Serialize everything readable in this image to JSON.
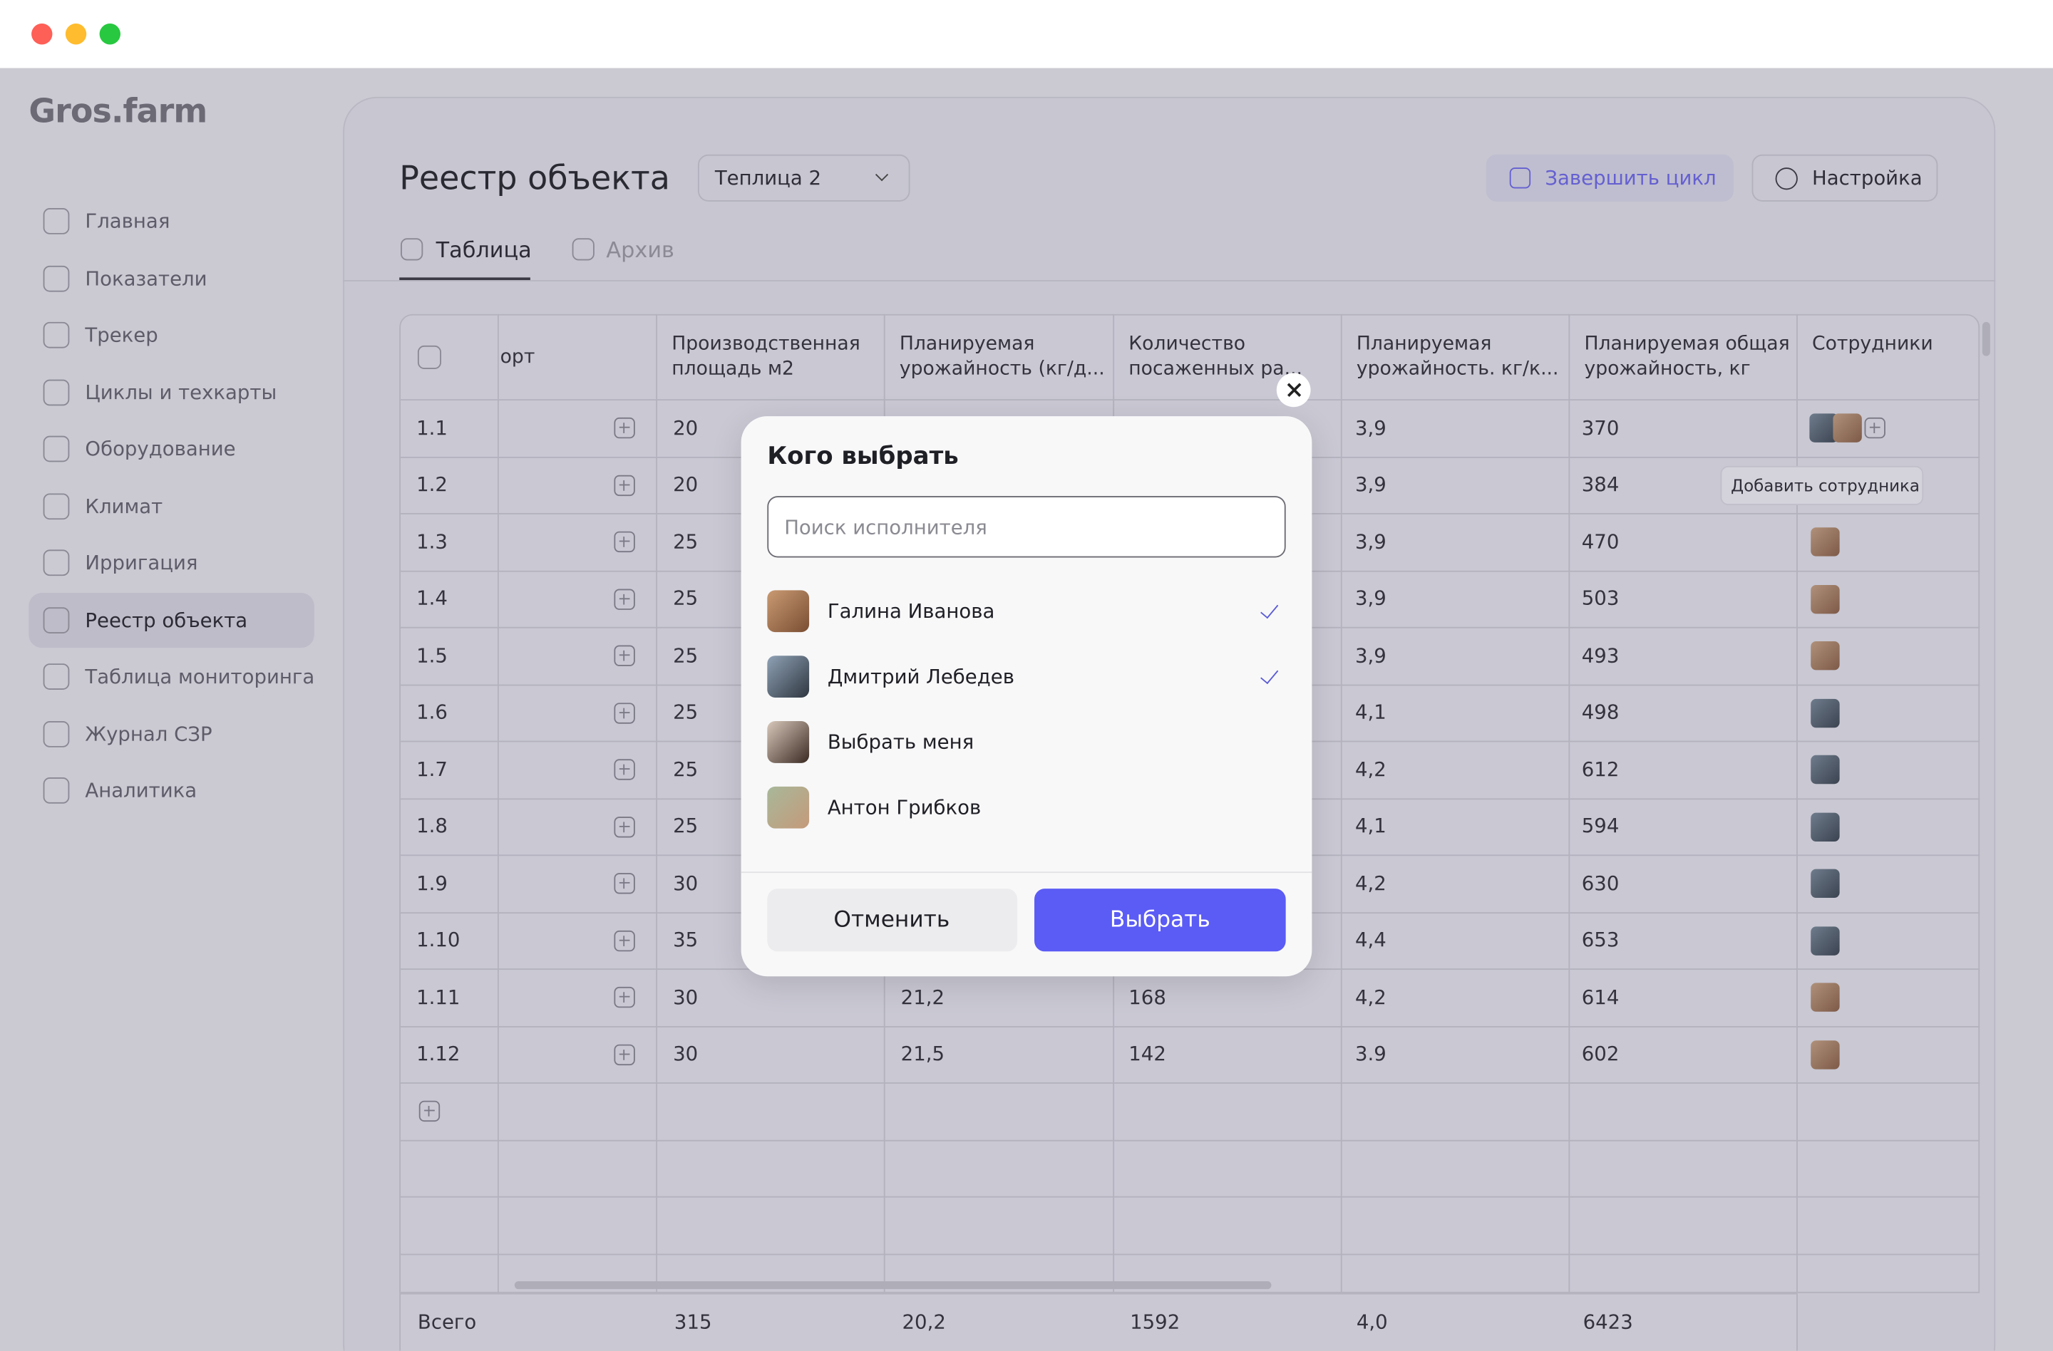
{
  "sidebar": {
    "logo": "Gros.farm",
    "nav": [
      "Главная",
      "Показатели",
      "Трекер",
      "Циклы и техкарты",
      "Оборудование",
      "Климат",
      "Ирригация",
      "Реестр объекта",
      "Таблица мониторинга",
      "Журнал СЗР",
      "Аналитика"
    ]
  },
  "header": {
    "title": "Реестр объекта",
    "object_select": "Теплица 2",
    "buttons": [
      "Завершить цикл",
      "Настройка"
    ]
  },
  "tabs": [
    "Таблица",
    "Архив"
  ],
  "table": {
    "columns": [
      "орт",
      "Производственная площадь м2",
      "Планируемая урожайность (кг/д...",
      "Количество посаженных ра...",
      "Планируемая урожайность. кг/к...",
      "Планируемая общая урожайность, кг",
      "Сотрудники"
    ],
    "rows": [
      [
        "1.1",
        "20",
        null,
        null,
        "3,9",
        "370"
      ],
      [
        "1.2",
        "20",
        null,
        null,
        "3,9",
        "384"
      ],
      [
        "1.3",
        "25",
        null,
        null,
        "3,9",
        "470"
      ],
      [
        "1.4",
        "25",
        null,
        null,
        "3,9",
        "503"
      ],
      [
        "1.5",
        "25",
        null,
        null,
        "3,9",
        "493"
      ],
      [
        "1.6",
        "25",
        null,
        null,
        "4,1",
        "498"
      ],
      [
        "1.7",
        "25",
        null,
        null,
        "4,2",
        "612"
      ],
      [
        "1.8",
        "25",
        null,
        null,
        "4,1",
        "594"
      ],
      [
        "1.9",
        "30",
        null,
        null,
        "4,2",
        "630"
      ],
      [
        "1.10",
        "35",
        null,
        null,
        "4,4",
        "653"
      ],
      [
        "1.11",
        "30",
        "21,2",
        "168",
        "4,2",
        "614"
      ],
      [
        "1.12",
        "30",
        "21,5",
        "142",
        "3.9",
        "602"
      ]
    ],
    "totals": [
      "Всего",
      "315",
      "20,2",
      "1592",
      "4,0",
      "6423"
    ]
  },
  "tooltip": "Добавить сотрудника",
  "modal": {
    "title": "Кого выбрать",
    "search_placeholder": "Поиск исполнителя",
    "people": [
      {
        "name": "Галина Иванова",
        "selected": true
      },
      {
        "name": "Дмитрий Лебедев",
        "selected": true
      },
      {
        "name": "Выбрать меня",
        "selected": false
      },
      {
        "name": "Антон Грибков",
        "selected": false
      }
    ],
    "buttons": [
      "Отменить",
      "Выбрать"
    ]
  }
}
